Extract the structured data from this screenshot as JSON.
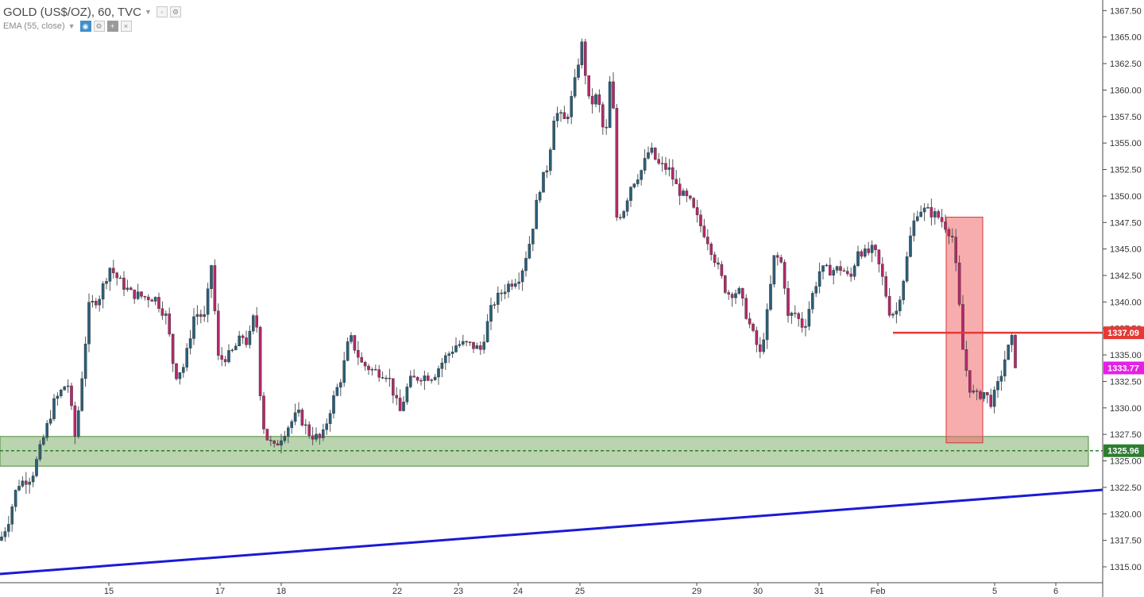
{
  "header": {
    "symbol": "GOLD (US$/OZ), 60, TVC",
    "indicator": "EMA (55, close)",
    "icons": [
      "settings-icon",
      "gear-icon",
      "eye-icon",
      "gear-icon",
      "plus-icon",
      "close-icon"
    ]
  },
  "colors": {
    "up_candle": "#2a5f7a",
    "down_candle": "#b6286a",
    "wick": "#555555",
    "resistance": "#e53935",
    "support_zone": "#8bb87a",
    "support_line": "#2e7d32",
    "trendline": "#1a1ad6",
    "current_price": "#e51fe5",
    "highlight_box": "#f06a6a"
  },
  "chart_data": {
    "type": "candlestick",
    "title": "GOLD (US$/OZ), 60, TVC",
    "ylim": [
      1313.5,
      1368.5
    ],
    "y_ticks": [
      1315.0,
      1317.5,
      1320.0,
      1322.5,
      1325.0,
      1327.5,
      1330.0,
      1332.5,
      1335.0,
      1337.5,
      1340.0,
      1342.5,
      1345.0,
      1347.5,
      1350.0,
      1352.5,
      1355.0,
      1357.5,
      1360.0,
      1362.5,
      1365.0,
      1367.5
    ],
    "x_ticks": [
      "15",
      "17",
      "18",
      "22",
      "23",
      "24",
      "25",
      "29",
      "30",
      "31",
      "Feb",
      "5",
      "6"
    ],
    "path": [
      [
        0,
        1317.5
      ],
      [
        10,
        1319.2
      ],
      [
        22,
        1322.8
      ],
      [
        40,
        1323.5
      ],
      [
        55,
        1327.2
      ],
      [
        68,
        1330.5
      ],
      [
        85,
        1332.5
      ],
      [
        95,
        1327.0
      ],
      [
        112,
        1339.5
      ],
      [
        125,
        1340.5
      ],
      [
        138,
        1343.3
      ],
      [
        150,
        1342.0
      ],
      [
        165,
        1340.8
      ],
      [
        180,
        1340.5
      ],
      [
        195,
        1340.4
      ],
      [
        210,
        1338.5
      ],
      [
        220,
        1333.0
      ],
      [
        232,
        1334.0
      ],
      [
        245,
        1339.0
      ],
      [
        258,
        1338.5
      ],
      [
        266,
        1343.5
      ],
      [
        275,
        1334.5
      ],
      [
        290,
        1335.0
      ],
      [
        305,
        1336.8
      ],
      [
        312,
        1336.0
      ],
      [
        322,
        1339.5
      ],
      [
        327,
        1332.0
      ],
      [
        333,
        1327.5
      ],
      [
        345,
        1326.2
      ],
      [
        360,
        1328.0
      ],
      [
        375,
        1329.5
      ],
      [
        390,
        1327.5
      ],
      [
        405,
        1327.0
      ],
      [
        418,
        1330.5
      ],
      [
        430,
        1333.0
      ],
      [
        440,
        1336.8
      ],
      [
        455,
        1334.2
      ],
      [
        470,
        1333.5
      ],
      [
        488,
        1333.2
      ],
      [
        503,
        1329.5
      ],
      [
        515,
        1332.5
      ],
      [
        530,
        1333.0
      ],
      [
        545,
        1333.0
      ],
      [
        560,
        1334.7
      ],
      [
        575,
        1336.0
      ],
      [
        590,
        1336.0
      ],
      [
        605,
        1335.5
      ],
      [
        620,
        1339.8
      ],
      [
        638,
        1341.5
      ],
      [
        655,
        1342.5
      ],
      [
        668,
        1346.0
      ],
      [
        678,
        1350.5
      ],
      [
        690,
        1353.0
      ],
      [
        698,
        1358.0
      ],
      [
        712,
        1357.0
      ],
      [
        722,
        1360.0
      ],
      [
        732,
        1364.5
      ],
      [
        742,
        1358.5
      ],
      [
        752,
        1359.5
      ],
      [
        762,
        1355.0
      ],
      [
        770,
        1363.0
      ],
      [
        776,
        1348.0
      ],
      [
        784,
        1348.5
      ],
      [
        794,
        1351.0
      ],
      [
        808,
        1352.5
      ],
      [
        818,
        1354.5
      ],
      [
        828,
        1353.0
      ],
      [
        842,
        1352.5
      ],
      [
        852,
        1350.8
      ],
      [
        860,
        1350.0
      ],
      [
        868,
        1349.5
      ],
      [
        878,
        1347.8
      ],
      [
        890,
        1346.0
      ],
      [
        900,
        1344.0
      ],
      [
        915,
        1340.8
      ],
      [
        930,
        1341.0
      ],
      [
        945,
        1337.5
      ],
      [
        957,
        1335.0
      ],
      [
        965,
        1338.5
      ],
      [
        975,
        1344.5
      ],
      [
        985,
        1343.5
      ],
      [
        992,
        1338.5
      ],
      [
        1000,
        1339.0
      ],
      [
        1012,
        1337.5
      ],
      [
        1022,
        1340.5
      ],
      [
        1032,
        1343.0
      ],
      [
        1048,
        1343.0
      ],
      [
        1060,
        1343.2
      ],
      [
        1070,
        1342.0
      ],
      [
        1080,
        1345.0
      ],
      [
        1090,
        1344.5
      ],
      [
        1100,
        1345.0
      ],
      [
        1110,
        1342.5
      ],
      [
        1120,
        1339.0
      ],
      [
        1128,
        1339.0
      ],
      [
        1138,
        1342.5
      ],
      [
        1148,
        1347.0
      ],
      [
        1156,
        1348.8
      ],
      [
        1170,
        1348.5
      ],
      [
        1182,
        1348.0
      ],
      [
        1192,
        1347.0
      ],
      [
        1200,
        1346.0
      ],
      [
        1207,
        1340.0
      ],
      [
        1212,
        1335.5
      ],
      [
        1220,
        1332.0
      ],
      [
        1228,
        1331.0
      ],
      [
        1238,
        1331.5
      ],
      [
        1248,
        1330.5
      ],
      [
        1258,
        1332.5
      ],
      [
        1266,
        1335.0
      ],
      [
        1274,
        1336.5
      ],
      [
        1282,
        1333.77
      ]
    ],
    "current_price": 1333.77,
    "resistance": 1337.09,
    "support": 1325.96,
    "support_zone": [
      1324.5,
      1327.3
    ],
    "highlight_range": [
      1326.7,
      1348.0
    ],
    "labels": {
      "resistance": "1337.09",
      "current": "1333.77",
      "support": "1325.96"
    }
  }
}
